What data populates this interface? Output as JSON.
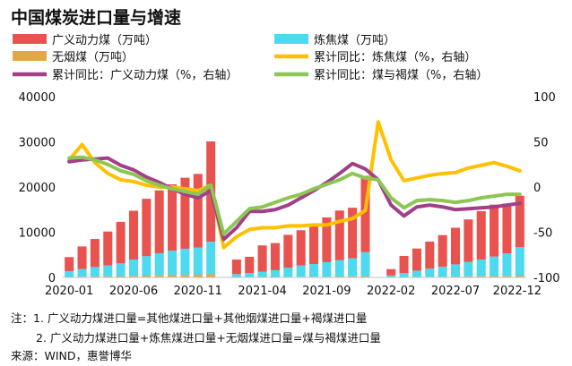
{
  "chart_data": {
    "type": "bar",
    "title": "中国煤炭进口量与增速",
    "categories": [
      "2020-01",
      "2020-02",
      "2020-03",
      "2020-04",
      "2020-05",
      "2020-06",
      "2020-07",
      "2020-08",
      "2020-09",
      "2020-10",
      "2020-11",
      "2020-12",
      "2021-01",
      "2021-02",
      "2021-03",
      "2021-04",
      "2021-05",
      "2021-06",
      "2021-07",
      "2021-08",
      "2021-09",
      "2021-10",
      "2021-11",
      "2021-12",
      "2022-01",
      "2022-02",
      "2022-03",
      "2022-04",
      "2022-05",
      "2022-06",
      "2022-07",
      "2022-08",
      "2022-09",
      "2022-10",
      "2022-11",
      "2022-12"
    ],
    "x_tick_labels": [
      "2020-01",
      "2020-06",
      "2020-11",
      "2021-04",
      "2021-09",
      "2022-02",
      "2022-07",
      "2022-12"
    ],
    "series": [
      {
        "name": "广义动力煤（万吨）",
        "kind": "bar",
        "axis": "left",
        "color": "#E8534F",
        "values": [
          3100,
          5000,
          6200,
          7500,
          9200,
          10800,
          12700,
          13900,
          14700,
          15700,
          16300,
          22200,
          0,
          3200,
          3600,
          5800,
          6000,
          7300,
          7800,
          8400,
          9900,
          11000,
          11200,
          16900,
          0,
          1400,
          3800,
          4900,
          6000,
          7000,
          8100,
          9400,
          10700,
          11500,
          11000,
          11400
        ]
      },
      {
        "name": "炼焦煤（万吨）",
        "kind": "bar",
        "axis": "left",
        "color": "#4DD9EE",
        "values": [
          1300,
          1700,
          2100,
          2400,
          2800,
          3600,
          4300,
          4900,
          5400,
          5800,
          6000,
          7200,
          0,
          700,
          900,
          1200,
          1500,
          2000,
          2500,
          2800,
          3200,
          3600,
          4000,
          5300,
          0,
          400,
          900,
          1400,
          1800,
          2200,
          2700,
          3200,
          3700,
          4300,
          5000,
          6300
        ]
      },
      {
        "name": "无烟煤（万吨）",
        "kind": "bar",
        "axis": "left",
        "color": "#E3A74A",
        "values": [
          100,
          150,
          200,
          250,
          300,
          350,
          400,
          450,
          500,
          550,
          600,
          700,
          0,
          50,
          60,
          80,
          100,
          120,
          140,
          160,
          180,
          200,
          220,
          280,
          0,
          30,
          60,
          90,
          120,
          150,
          190,
          230,
          270,
          310,
          340,
          380
        ]
      },
      {
        "name": "累计同比：炼焦煤（%，右轴）",
        "kind": "line",
        "axis": "right",
        "color": "#FFC000",
        "values": [
          30,
          47,
          27,
          15,
          8,
          6,
          2,
          0,
          0,
          -2,
          -4,
          2,
          -67,
          -55,
          -47,
          -45,
          -45,
          -43,
          -43,
          -42,
          -42,
          -38,
          -35,
          -26,
          72,
          30,
          7,
          10,
          13,
          15,
          16,
          21,
          24,
          27,
          23,
          18
        ]
      },
      {
        "name": "累计同比：广义动力煤（%，右轴）",
        "kind": "line",
        "axis": "right",
        "color": "#A23F8A",
        "values": [
          28,
          30,
          31,
          32,
          24,
          19,
          11,
          5,
          -2,
          -8,
          -12,
          -4,
          -58,
          -45,
          -27,
          -27,
          -25,
          -20,
          -12,
          -4,
          5,
          15,
          26,
          20,
          8,
          -20,
          -32,
          -22,
          -20,
          -22,
          -25,
          -24,
          -23,
          -22,
          -20,
          -18
        ]
      },
      {
        "name": "累计同比：煤与褐煤（%，右轴）",
        "kind": "line",
        "axis": "right",
        "color": "#8CC653",
        "values": [
          32,
          33,
          30,
          25,
          18,
          14,
          7,
          2,
          -2,
          -5,
          -8,
          2,
          -52,
          -38,
          -24,
          -22,
          -17,
          -12,
          -8,
          -2,
          3,
          8,
          15,
          10,
          8,
          -12,
          -23,
          -15,
          -14,
          -15,
          -17,
          -15,
          -12,
          -10,
          -8,
          -8
        ]
      }
    ],
    "y_left": {
      "ylim": [
        0,
        40000
      ],
      "ticks": [
        0,
        10000,
        20000,
        30000,
        40000
      ]
    },
    "y_right": {
      "ylim": [
        -100,
        100
      ],
      "ticks": [
        -100,
        -50,
        0,
        50,
        100
      ]
    },
    "grid": false,
    "legend_position": "top",
    "notes": [
      "注：1. 广义动力煤进口量=其他煤进口量+其他烟煤进口量+褐煤进口量",
      "2. 广义动力煤进口量+炼焦煤进口量+无烟煤进口量=煤与褐煤进口量",
      "来源：WIND，惠誉博华"
    ]
  }
}
